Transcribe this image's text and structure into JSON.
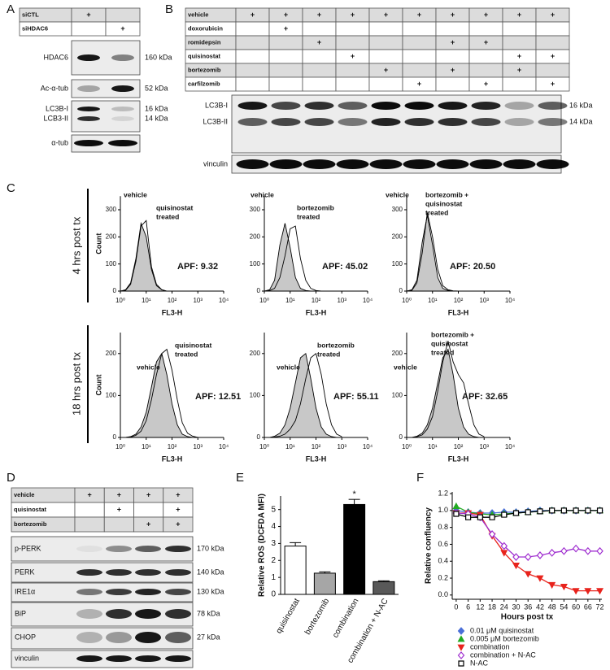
{
  "panels": {
    "A": {
      "label": "A",
      "table": [
        {
          "name": "siCTL",
          "cells": [
            "+",
            null
          ]
        },
        {
          "name": "siHDAC6",
          "cells": [
            null,
            "+"
          ]
        }
      ],
      "blots": [
        {
          "labels": [
            "HDAC6"
          ],
          "sizes": [
            "160 kDa"
          ]
        },
        {
          "labels": [
            "Ac-α-tub"
          ],
          "sizes": [
            "52 kDa"
          ]
        },
        {
          "labels": [
            "LC3B-I",
            "LCB3-II"
          ],
          "sizes": [
            "16 kDa",
            "14 kDa"
          ]
        },
        {
          "labels": [
            "α-tub"
          ]
        }
      ]
    },
    "B": {
      "label": "B",
      "table": [
        {
          "name": "vehicle",
          "cells": [
            "+",
            "+",
            "+",
            "+",
            "+",
            "+",
            "+",
            "+",
            "+",
            "+"
          ]
        },
        {
          "name": "doxorubicin",
          "cells": [
            null,
            "+",
            null,
            null,
            null,
            null,
            null,
            null,
            null,
            null
          ]
        },
        {
          "name": "romidepsin",
          "cells": [
            null,
            null,
            "+",
            null,
            null,
            null,
            "+",
            "+",
            null,
            null
          ]
        },
        {
          "name": "quisinostat",
          "cells": [
            null,
            null,
            null,
            "+",
            null,
            null,
            null,
            null,
            "+",
            "+"
          ]
        },
        {
          "name": "bortezomib",
          "cells": [
            null,
            null,
            null,
            null,
            "+",
            null,
            "+",
            null,
            "+",
            null
          ]
        },
        {
          "name": "carfilzomib",
          "cells": [
            null,
            null,
            null,
            null,
            null,
            "+",
            null,
            "+",
            null,
            "+"
          ]
        }
      ],
      "blots": [
        {
          "labels": [
            "LC3B-I",
            "LC3B-II"
          ],
          "sizes": [
            "16 kDa",
            "14 kDa"
          ]
        },
        {
          "labels": [
            "vinculin"
          ]
        }
      ]
    },
    "C": {
      "label": "C",
      "rows": [
        "4 hrs post tx",
        "18 hrs post tx"
      ]
    },
    "D": {
      "label": "D",
      "table": [
        {
          "name": "vehicle",
          "cells": [
            "+",
            "+",
            "+",
            "+"
          ]
        },
        {
          "name": "quisinostat",
          "cells": [
            null,
            "+",
            null,
            "+"
          ]
        },
        {
          "name": "bortezomib",
          "cells": [
            null,
            null,
            "+",
            "+"
          ]
        }
      ],
      "blots": [
        {
          "labels": [
            "p-PERK"
          ],
          "sizes": [
            "170 kDa"
          ]
        },
        {
          "labels": [
            "PERK"
          ],
          "sizes": [
            "140 kDa"
          ]
        },
        {
          "labels": [
            "IRE1α"
          ],
          "sizes": [
            "130 kDa"
          ]
        },
        {
          "labels": [
            "BiP"
          ],
          "sizes": [
            "78 kDa"
          ]
        },
        {
          "labels": [
            "CHOP"
          ],
          "sizes": [
            "27 kDa"
          ]
        },
        {
          "labels": [
            "vinculin"
          ]
        }
      ]
    },
    "E": {
      "label": "E"
    },
    "F": {
      "label": "F"
    }
  },
  "chart_data": [
    {
      "type": "area",
      "ylabel": "Count",
      "xlabel": "FL3-H",
      "xscale": "log",
      "xlim": [
        1,
        10000
      ],
      "xticks": [
        {
          "value": 1,
          "label": "10⁰"
        },
        {
          "value": 10,
          "label": "10¹"
        },
        {
          "value": 100,
          "label": "10²"
        },
        {
          "value": 1000,
          "label": "10³"
        },
        {
          "value": 10000,
          "label": "10⁴"
        }
      ],
      "ylim": [
        0,
        350
      ],
      "yticks": [
        0,
        100,
        200,
        300
      ],
      "annotation": "APF: 9.32",
      "x": [
        1,
        1.6,
        2.5,
        4,
        6.3,
        10,
        16,
        25,
        40,
        63,
        100,
        160,
        250,
        400,
        630,
        1000
      ],
      "series": [
        {
          "name": [
            "vehicle"
          ],
          "color": "#c8c8c8",
          "values": [
            0,
            5,
            30,
            120,
            250,
            200,
            80,
            20,
            5,
            0,
            0,
            0,
            0,
            0,
            0,
            0
          ]
        },
        {
          "name": [
            "quisinostat",
            "treated"
          ],
          "color": "#000000",
          "values": [
            0,
            3,
            25,
            110,
            240,
            260,
            90,
            25,
            5,
            0,
            0,
            0,
            0,
            0,
            0,
            0
          ]
        }
      ]
    },
    {
      "type": "area",
      "xlabel": "FL3-H",
      "xscale": "log",
      "xlim": [
        1,
        10000
      ],
      "xticks": [
        {
          "value": 1,
          "label": "10⁰"
        },
        {
          "value": 10,
          "label": "10¹"
        },
        {
          "value": 100,
          "label": "10²"
        },
        {
          "value": 1000,
          "label": "10³"
        },
        {
          "value": 10000,
          "label": "10⁴"
        }
      ],
      "ylim": [
        0,
        350
      ],
      "yticks": [
        0,
        100,
        200,
        300
      ],
      "annotation": "APF: 45.02",
      "x": [
        1,
        1.6,
        2.5,
        4,
        6.3,
        10,
        16,
        25,
        40,
        63,
        100,
        160,
        250,
        400,
        630,
        1000
      ],
      "series": [
        {
          "name": [
            "vehicle"
          ],
          "color": "#c8c8c8",
          "values": [
            0,
            5,
            40,
            170,
            250,
            160,
            50,
            10,
            2,
            0,
            0,
            0,
            0,
            0,
            0,
            0
          ]
        },
        {
          "name": [
            "bortezomib",
            "treated"
          ],
          "color": "#000000",
          "values": [
            0,
            2,
            10,
            50,
            130,
            230,
            240,
            120,
            40,
            10,
            2,
            0,
            0,
            0,
            0,
            0
          ]
        }
      ]
    },
    {
      "type": "area",
      "xlabel": "FL3-H",
      "xscale": "log",
      "xlim": [
        1,
        10000
      ],
      "xticks": [
        {
          "value": 1,
          "label": "10⁰"
        },
        {
          "value": 10,
          "label": "10¹"
        },
        {
          "value": 100,
          "label": "10²"
        },
        {
          "value": 1000,
          "label": "10³"
        },
        {
          "value": 10000,
          "label": "10⁴"
        }
      ],
      "ylim": [
        0,
        350
      ],
      "yticks": [
        0,
        100,
        200,
        300
      ],
      "annotation": "APF: 20.50",
      "x": [
        1,
        1.6,
        2.5,
        4,
        6.3,
        10,
        16,
        25,
        40,
        63,
        100,
        160,
        250,
        400,
        630,
        1000
      ],
      "series": [
        {
          "name": [
            "vehicle"
          ],
          "color": "#c8c8c8",
          "values": [
            0,
            5,
            40,
            180,
            280,
            170,
            50,
            10,
            2,
            0,
            0,
            0,
            0,
            0,
            0,
            0
          ]
        },
        {
          "name": [
            "bortezomib +",
            "quisinostat",
            "treated"
          ],
          "color": "#000000",
          "values": [
            0,
            3,
            30,
            140,
            290,
            200,
            80,
            20,
            5,
            1,
            0,
            0,
            0,
            0,
            0,
            0
          ]
        }
      ]
    },
    {
      "type": "area",
      "ylabel": "Count",
      "xlabel": "FL3-H",
      "xscale": "log",
      "xlim": [
        1,
        10000
      ],
      "xticks": [
        {
          "value": 1,
          "label": "10⁰"
        },
        {
          "value": 10,
          "label": "10¹"
        },
        {
          "value": 100,
          "label": "10²"
        },
        {
          "value": 1000,
          "label": "10³"
        },
        {
          "value": 10000,
          "label": "10⁴"
        }
      ],
      "ylim": [
        0,
        250
      ],
      "yticks": [
        0,
        100,
        200
      ],
      "annotation": "APF: 12.51",
      "x": [
        1,
        1.6,
        2.5,
        4,
        6.3,
        10,
        16,
        25,
        40,
        63,
        100,
        160,
        250,
        400,
        630,
        1000
      ],
      "series": [
        {
          "name": [
            "vehicle"
          ],
          "color": "#c8c8c8",
          "values": [
            0,
            0,
            2,
            8,
            25,
            60,
            120,
            180,
            200,
            150,
            80,
            30,
            8,
            2,
            0,
            0
          ]
        },
        {
          "name": [
            "quisinostat",
            "treated"
          ],
          "color": "#000000",
          "values": [
            0,
            0,
            1,
            5,
            15,
            40,
            90,
            150,
            200,
            210,
            160,
            90,
            35,
            10,
            3,
            0
          ]
        }
      ]
    },
    {
      "type": "area",
      "xlabel": "FL3-H",
      "xscale": "log",
      "xlim": [
        1,
        10000
      ],
      "xticks": [
        {
          "value": 1,
          "label": "10⁰"
        },
        {
          "value": 10,
          "label": "10¹"
        },
        {
          "value": 100,
          "label": "10²"
        },
        {
          "value": 1000,
          "label": "10³"
        },
        {
          "value": 10000,
          "label": "10⁴"
        }
      ],
      "ylim": [
        0,
        250
      ],
      "yticks": [
        0,
        100,
        200
      ],
      "annotation": "APF: 55.11",
      "x": [
        1,
        1.6,
        2.5,
        4,
        6.3,
        10,
        16,
        25,
        40,
        63,
        100,
        160,
        250,
        400,
        630,
        1000
      ],
      "series": [
        {
          "name": [
            "vehicle"
          ],
          "color": "#c8c8c8",
          "values": [
            0,
            0,
            3,
            10,
            30,
            70,
            130,
            190,
            200,
            140,
            70,
            25,
            8,
            2,
            0,
            0
          ]
        },
        {
          "name": [
            "bortezomib",
            "treated"
          ],
          "color": "#000000",
          "values": [
            0,
            0,
            1,
            3,
            8,
            20,
            40,
            80,
            140,
            190,
            200,
            150,
            80,
            30,
            8,
            2
          ]
        }
      ]
    },
    {
      "type": "area",
      "xlabel": "FL3-H",
      "xscale": "log",
      "xlim": [
        1,
        10000
      ],
      "xticks": [
        {
          "value": 1,
          "label": "10⁰"
        },
        {
          "value": 10,
          "label": "10¹"
        },
        {
          "value": 100,
          "label": "10²"
        },
        {
          "value": 1000,
          "label": "10³"
        },
        {
          "value": 10000,
          "label": "10⁴"
        }
      ],
      "ylim": [
        0,
        250
      ],
      "yticks": [
        0,
        100,
        200
      ],
      "annotation": "APF: 32.65",
      "x": [
        1,
        1.6,
        2.5,
        4,
        6.3,
        10,
        16,
        25,
        40,
        63,
        100,
        160,
        250,
        400,
        630,
        1000
      ],
      "series": [
        {
          "name": [
            "vehicle"
          ],
          "color": "#c8c8c8",
          "values": [
            0,
            0,
            3,
            10,
            30,
            70,
            130,
            190,
            210,
            150,
            70,
            25,
            8,
            2,
            0,
            0
          ]
        },
        {
          "name": [
            "bortezomib +",
            "quisinostat",
            "treated"
          ],
          "color": "#000000",
          "values": [
            0,
            0,
            2,
            6,
            20,
            50,
            110,
            180,
            230,
            180,
            150,
            130,
            80,
            30,
            8,
            2
          ]
        }
      ]
    },
    {
      "type": "bar",
      "ylabel": "Relative ROS (DCFDA MFI)",
      "categories": [
        "quisinostat",
        "bortezomib",
        "combination",
        "combination + N-AC"
      ],
      "values": [
        2.85,
        1.25,
        5.3,
        0.75
      ],
      "errors": [
        0.2,
        0.08,
        0.3,
        0.05
      ],
      "colors": [
        "#ffffff",
        "#a6a6a6",
        "#000000",
        "#595959"
      ],
      "ylim": [
        0,
        5.8
      ],
      "yticks": [
        0,
        1,
        2,
        3,
        4,
        5
      ],
      "annotation": "*"
    },
    {
      "type": "line",
      "xlabel": "Hours post tx",
      "ylabel": "Relative confluency",
      "x": [
        0,
        6,
        12,
        18,
        24,
        30,
        36,
        42,
        48,
        54,
        60,
        66,
        72
      ],
      "xlim": [
        -2,
        73
      ],
      "xticks": [
        0,
        6,
        12,
        18,
        24,
        30,
        36,
        42,
        48,
        54,
        60,
        66,
        72
      ],
      "ylim": [
        -0.05,
        1.22
      ],
      "yticks": [
        {
          "value": 0,
          "label": "0.0"
        },
        0.2,
        0.4,
        0.6,
        0.8,
        {
          "value": 1,
          "label": "1.0"
        },
        1.2
      ],
      "legend": "bottom",
      "series": [
        {
          "name": "0.01 μM quisinostat",
          "color": "#4a6fd8",
          "marker": "diamond",
          "filled": true,
          "values": [
            1.0,
            0.98,
            0.97,
            0.97,
            0.98,
            0.98,
            0.99,
            1.0,
            1.0,
            1.0,
            1.0,
            1.0,
            1.0
          ]
        },
        {
          "name": "0.005 μM bortezomib",
          "color": "#22aa22",
          "marker": "triangle-up",
          "filled": true,
          "values": [
            1.05,
            0.98,
            0.96,
            0.95,
            0.96,
            0.97,
            0.98,
            0.99,
            1.0,
            1.0,
            1.0,
            1.0,
            1.0
          ]
        },
        {
          "name": "combination",
          "color": "#e8231c",
          "marker": "triangle-down",
          "filled": true,
          "values": [
            0.97,
            0.97,
            0.95,
            0.7,
            0.5,
            0.35,
            0.25,
            0.2,
            0.12,
            0.1,
            0.05,
            0.05,
            0.05
          ]
        },
        {
          "name": "combination + N-AC",
          "color": "#a030d0",
          "marker": "diamond",
          "filled": false,
          "values": [
            0.97,
            0.96,
            0.92,
            0.72,
            0.58,
            0.45,
            0.45,
            0.47,
            0.5,
            0.52,
            0.55,
            0.52,
            0.52
          ]
        },
        {
          "name": "N-AC",
          "color": "#000000",
          "marker": "square",
          "filled": false,
          "values": [
            0.96,
            0.92,
            0.92,
            0.92,
            0.95,
            0.97,
            0.98,
            0.99,
            1.0,
            1.0,
            1.0,
            1.0,
            1.0
          ]
        }
      ]
    }
  ]
}
